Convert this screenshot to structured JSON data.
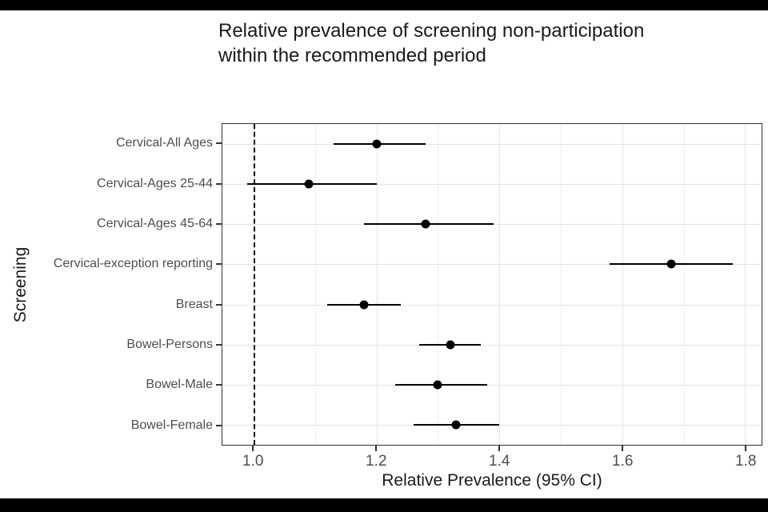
{
  "header": {
    "title_line1": "Relative prevalence of screening non-participation",
    "title_line2": "within the recommended period"
  },
  "chart_data": {
    "type": "scatter",
    "subtype": "forest-plot",
    "title": "Relative prevalence of screening non-participation within the recommended period",
    "xlabel": "Relative Prevalence (95% CI)",
    "ylabel": "Screening",
    "categories": [
      "Cervical-All Ages",
      "Cervical-Ages 25-44",
      "Cervical-Ages 45-64",
      "Cervical-exception reporting",
      "Breast",
      "Bowel-Persons",
      "Bowel-Male",
      "Bowel-Female"
    ],
    "series": [
      {
        "name": "Relative prevalence (95% CI)",
        "values": [
          1.2,
          1.09,
          1.28,
          1.68,
          1.18,
          1.32,
          1.3,
          1.33
        ],
        "ci_lower": [
          1.13,
          0.99,
          1.18,
          1.58,
          1.12,
          1.27,
          1.23,
          1.26
        ],
        "ci_upper": [
          1.28,
          1.2,
          1.39,
          1.78,
          1.24,
          1.37,
          1.38,
          1.4
        ]
      }
    ],
    "x_major_ticks": [
      1.0,
      1.2,
      1.4,
      1.6,
      1.8
    ],
    "x_major_tick_labels": [
      "1.0",
      "1.2",
      "1.4",
      "1.6",
      "1.8"
    ],
    "x_minor_ticks": [
      1.1,
      1.3,
      1.5,
      1.7
    ],
    "xlim": [
      0.949,
      1.827
    ],
    "reference_line_x": 1.0,
    "grid": "on",
    "legend": "none",
    "colors": {
      "point": "#000000",
      "error_bar": "#000000",
      "reference_line": "#000000",
      "grid_major": "#e3e3e3",
      "grid_minor": "#f0f0f0",
      "panel_border": "#333333",
      "tick_label": "#4d4d4d",
      "axis_title": "#1a1a1a",
      "background": "#ffffff",
      "frame_bars": "#000000"
    }
  }
}
